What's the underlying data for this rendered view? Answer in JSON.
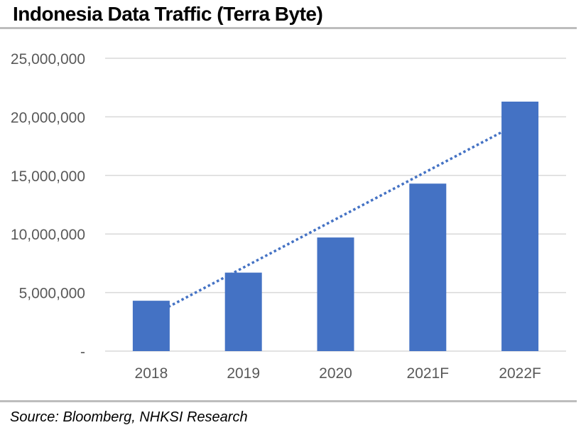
{
  "title": "Indonesia Data Traffic (Terra Byte)",
  "source": "Source: Bloomberg, NHKSI Research",
  "colors": {
    "bar": "#4472C4",
    "trend": "#4472C4",
    "grid": "#d9d9d9",
    "tick_text": "#595959"
  },
  "chart_data": {
    "type": "bar",
    "title": "Indonesia Data Traffic (Terra Byte)",
    "categories": [
      "2018",
      "2019",
      "2020",
      "2021F",
      "2022F"
    ],
    "values": [
      4300000,
      6700000,
      9700000,
      14300000,
      21300000
    ],
    "ylim": [
      0,
      25000000
    ],
    "yticks": [
      {
        "value": 0,
        "label": "-"
      },
      {
        "value": 5000000,
        "label": "5,000,000"
      },
      {
        "value": 10000000,
        "label": "10,000,000"
      },
      {
        "value": 15000000,
        "label": "15,000,000"
      },
      {
        "value": 20000000,
        "label": "20,000,000"
      },
      {
        "value": 25000000,
        "label": "25,000,000"
      }
    ],
    "grid": true,
    "trendline": {
      "type": "linear",
      "style": "dotted"
    }
  }
}
